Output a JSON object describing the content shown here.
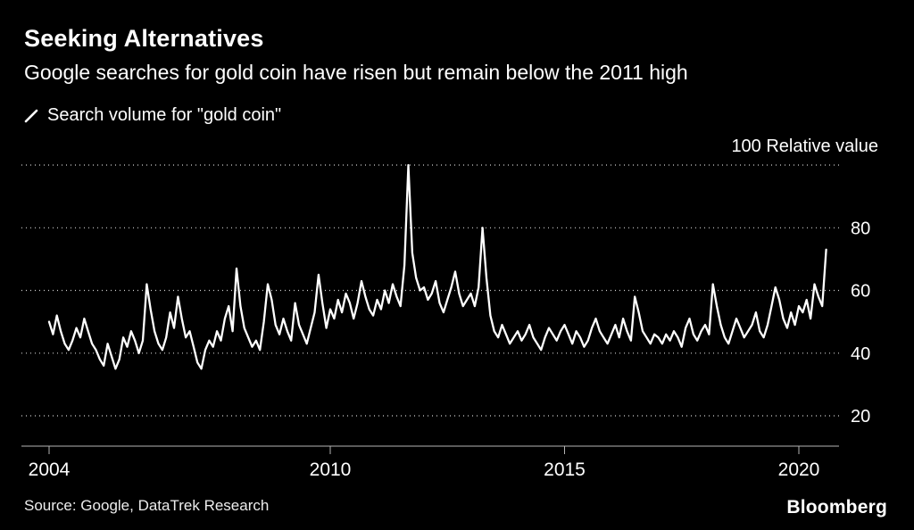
{
  "header": {
    "title": "Seeking Alternatives",
    "subtitle": "Google searches for gold coin have risen but remain below the 2011 high"
  },
  "legend": {
    "label": "Search volume for \"gold coin\""
  },
  "axis": {
    "top_label": "100 Relative value"
  },
  "footer": {
    "source": "Source: Google, DataTrek Research",
    "brand": "Bloomberg"
  },
  "chart_data": {
    "type": "line",
    "title": "Seeking Alternatives",
    "subtitle": "Google searches for gold coin have risen but remain below the 2011 high",
    "series_name": "Search volume for \"gold coin\"",
    "ylabel": "Relative value",
    "ylim": [
      20,
      100
    ],
    "yticks": [
      100,
      80,
      60,
      40,
      20
    ],
    "xticks": [
      2004,
      2010,
      2015,
      2020
    ],
    "grid": "dotted-horizontal",
    "legend_position": "top-left",
    "line_color": "#ffffff",
    "background": "#000000",
    "x_start_year": 2004.0,
    "x_step_years": 0.0833333,
    "values": [
      50,
      46,
      52,
      47,
      43,
      41,
      44,
      48,
      45,
      51,
      47,
      43,
      41,
      38,
      36,
      43,
      39,
      35,
      38,
      45,
      42,
      47,
      44,
      40,
      44,
      62,
      54,
      47,
      43,
      41,
      45,
      53,
      48,
      58,
      51,
      45,
      47,
      42,
      37,
      35,
      41,
      44,
      42,
      47,
      44,
      51,
      55,
      47,
      67,
      55,
      48,
      45,
      42,
      44,
      41,
      50,
      62,
      57,
      49,
      46,
      51,
      47,
      44,
      56,
      49,
      46,
      43,
      48,
      53,
      65,
      56,
      48,
      54,
      51,
      57,
      53,
      59,
      56,
      51,
      56,
      63,
      58,
      54,
      52,
      57,
      54,
      60,
      56,
      62,
      58,
      55,
      68,
      100,
      72,
      64,
      60,
      61,
      57,
      59,
      63,
      56,
      53,
      57,
      61,
      66,
      59,
      55,
      57,
      59,
      55,
      61,
      80,
      64,
      52,
      47,
      45,
      49,
      46,
      43,
      45,
      47,
      44,
      46,
      49,
      45,
      43,
      41,
      45,
      48,
      46,
      44,
      47,
      49,
      46,
      43,
      47,
      45,
      42,
      44,
      48,
      51,
      47,
      45,
      43,
      46,
      49,
      45,
      51,
      47,
      44,
      58,
      53,
      47,
      45,
      43,
      46,
      45,
      43,
      46,
      44,
      47,
      45,
      42,
      48,
      51,
      46,
      44,
      47,
      49,
      46,
      62,
      55,
      49,
      45,
      43,
      47,
      51,
      48,
      45,
      47,
      49,
      53,
      47,
      45,
      49,
      55,
      61,
      57,
      51,
      48,
      53,
      49,
      55,
      53,
      57,
      51,
      62,
      58,
      55,
      73
    ]
  }
}
